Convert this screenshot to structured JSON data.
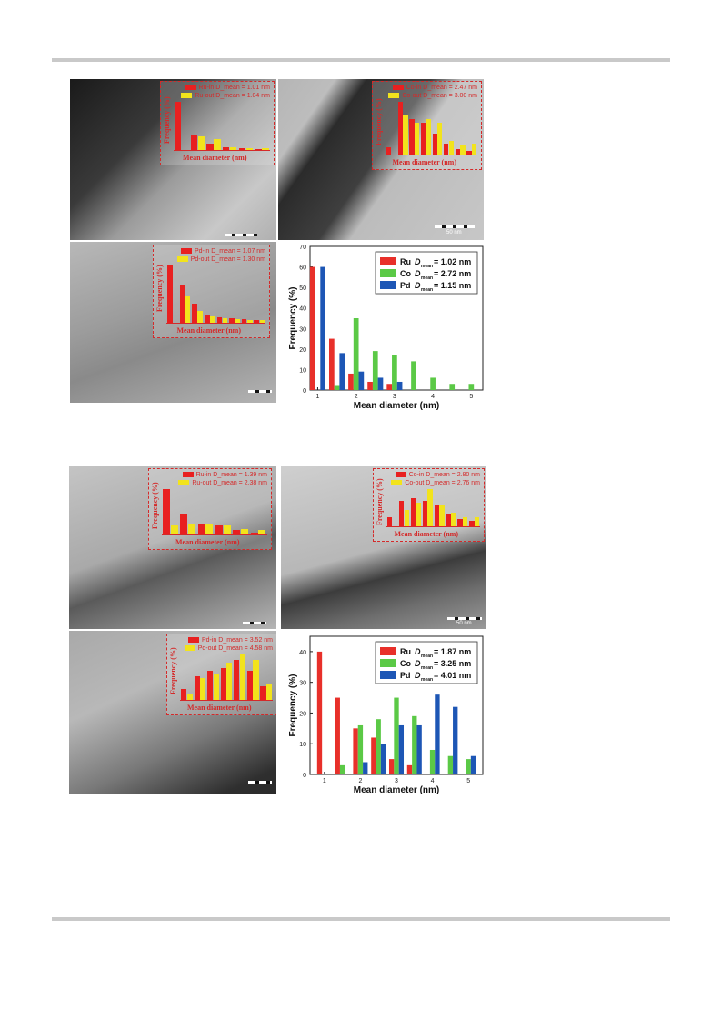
{
  "figure_a": {
    "tem_insets": [
      {
        "legend": [
          {
            "label": "Ru-in",
            "d": "1.01 nm",
            "color": "#e82020"
          },
          {
            "label": "Ru-out",
            "d": "1.04 nm",
            "color": "#f2e31c"
          }
        ],
        "xlabel": "Mean diameter (nm)",
        "ylabel": "Frequency (%)",
        "in": [
          62,
          20,
          8,
          4,
          2,
          1
        ],
        "out": [
          0,
          18,
          14,
          3,
          2,
          2
        ]
      },
      {
        "legend": [
          {
            "label": "Co-in",
            "d": "2.47 nm",
            "color": "#e82020"
          },
          {
            "label": "Co-out",
            "d": "3.00 nm",
            "color": "#f2e31c"
          }
        ],
        "xlabel": "Mean diameter (nm)",
        "ylabel": "Frequency (%)",
        "in": [
          4,
          30,
          20,
          18,
          12,
          6,
          3,
          2
        ],
        "out": [
          0,
          22,
          18,
          20,
          18,
          8,
          5,
          6
        ],
        "scale": "50 nm"
      },
      {
        "legend": [
          {
            "label": "Pd-in",
            "d": "1.07 nm",
            "color": "#e82020"
          },
          {
            "label": "Pd-out",
            "d": "1.30 nm",
            "color": "#f2e31c"
          }
        ],
        "xlabel": "Mean diameter (nm)",
        "ylabel": "Frequency (%)",
        "in": [
          60,
          40,
          20,
          8,
          6,
          5,
          4,
          3
        ],
        "out": [
          0,
          28,
          12,
          7,
          5,
          4,
          3,
          3
        ]
      }
    ]
  },
  "figure_b": {
    "tem_insets": [
      {
        "legend": [
          {
            "label": "Ru-in",
            "d": "1.39 nm",
            "color": "#e82020"
          },
          {
            "label": "Ru-out",
            "d": "2.38 nm",
            "color": "#f2e31c"
          }
        ],
        "xlabel": "Mean diameter (nm)",
        "ylabel": "Frequency (%)",
        "in": [
          40,
          18,
          10,
          8,
          4,
          2
        ],
        "out": [
          8,
          10,
          10,
          8,
          5,
          4
        ]
      },
      {
        "legend": [
          {
            "label": "Co-in",
            "d": "2.80 nm",
            "color": "#e82020"
          },
          {
            "label": "Co-out",
            "d": "2.76 nm",
            "color": "#f2e31c"
          }
        ],
        "xlabel": "Mean diameter (nm)",
        "ylabel": "Frequency (%)",
        "in": [
          8,
          22,
          24,
          22,
          18,
          10,
          6,
          5
        ],
        "out": [
          0,
          14,
          20,
          32,
          18,
          12,
          8,
          8
        ],
        "scale": "50 nm"
      },
      {
        "legend": [
          {
            "label": "Pd-in",
            "d": "3.52 nm",
            "color": "#e82020"
          },
          {
            "label": "Pd-out",
            "d": "4.58 nm",
            "color": "#f2e31c"
          }
        ],
        "xlabel": "Mean diameter (nm)",
        "ylabel": "Frequency (%)",
        "in": [
          8,
          18,
          22,
          24,
          30,
          22,
          10
        ],
        "out": [
          4,
          16,
          20,
          28,
          34,
          30,
          12
        ]
      }
    ]
  },
  "chart_data": [
    {
      "type": "bar",
      "xlabel": "Mean diameter (nm)",
      "ylabel": "Frequency (%)",
      "ylim": [
        0,
        70
      ],
      "xlim": [
        0.8,
        5.3
      ],
      "xticks": [
        1,
        2,
        3,
        4,
        5
      ],
      "yticks": [
        0,
        10,
        20,
        30,
        40,
        50,
        60,
        70
      ],
      "legend_position": "top-right",
      "series": [
        {
          "name": "Ru",
          "dmean": "= 1.02 nm",
          "color": "#e8302a",
          "x": [
            1,
            1.5,
            2,
            2.5,
            3
          ],
          "values": [
            60,
            25,
            8,
            4,
            3
          ]
        },
        {
          "name": "Co",
          "dmean": "= 2.72 nm",
          "color": "#5bc946",
          "x": [
            1.5,
            2,
            2.5,
            3,
            3.5,
            4,
            4.5,
            5
          ],
          "values": [
            2,
            35,
            19,
            17,
            14,
            6,
            3,
            3
          ]
        },
        {
          "name": "Pd",
          "dmean": "= 1.15 nm",
          "color": "#1d56b5",
          "x": [
            1,
            1.5,
            2,
            2.5,
            3
          ],
          "values": [
            60,
            18,
            9,
            6,
            4
          ]
        }
      ]
    },
    {
      "type": "bar",
      "xlabel": "Mean diameter (nm)",
      "ylabel": "Frequency (%)",
      "ylim": [
        0,
        45
      ],
      "xlim": [
        0.6,
        5.4
      ],
      "xticks": [
        1,
        2,
        3,
        4,
        5
      ],
      "yticks": [
        0,
        10,
        20,
        30,
        40
      ],
      "legend_position": "top-right",
      "series": [
        {
          "name": "Ru",
          "dmean": "= 1.87 nm",
          "color": "#e8302a",
          "x": [
            1,
            1.5,
            2,
            2.5,
            3,
            3.5
          ],
          "values": [
            40,
            25,
            15,
            12,
            5,
            3
          ]
        },
        {
          "name": "Co",
          "dmean": "= 3.25 nm",
          "color": "#5bc946",
          "x": [
            1.5,
            2,
            2.5,
            3,
            3.5,
            4,
            4.5,
            5
          ],
          "values": [
            3,
            16,
            18,
            25,
            19,
            8,
            6,
            5
          ]
        },
        {
          "name": "Pd",
          "dmean": "= 4.01 nm",
          "color": "#1d56b5",
          "x": [
            2,
            2.5,
            3,
            3.5,
            4,
            4.5,
            5
          ],
          "values": [
            4,
            10,
            16,
            16,
            26,
            22,
            6
          ]
        }
      ]
    }
  ]
}
